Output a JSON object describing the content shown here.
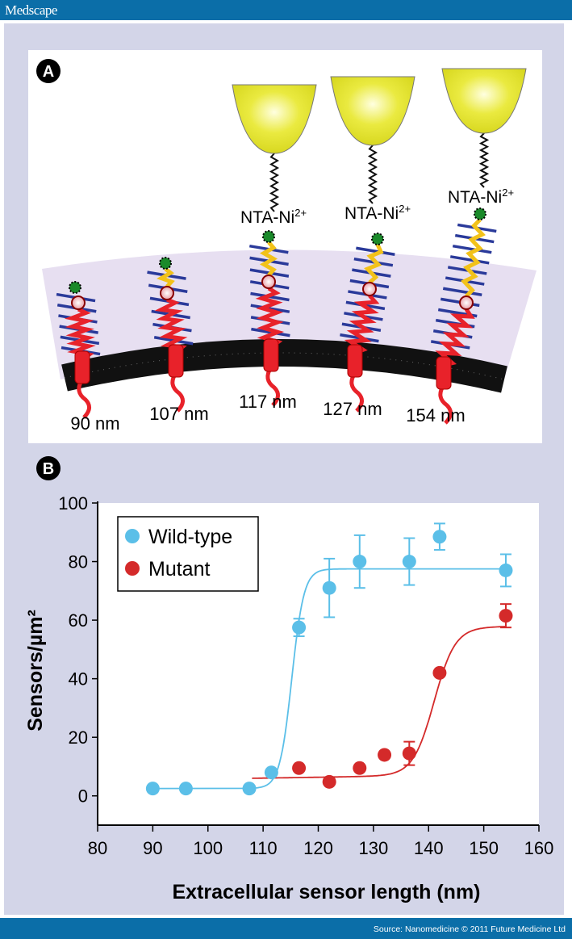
{
  "header": {
    "brand": "Medscape"
  },
  "footer": {
    "source": "Source: Nanomedicine © 2011 Future Medicine Ltd"
  },
  "panel_a": {
    "letter": "A",
    "sensor_labels": [
      "90 nm",
      "107 nm",
      "117 nm",
      "127 nm",
      "154 nm"
    ],
    "nta_label": "NTA-Ni",
    "nta_superscript": "2+",
    "colors": {
      "bead": "#e6e62a",
      "membrane": "#111111",
      "protein": "#e8222a",
      "linker": "#f2c21a",
      "repeats": "#2a3a9a",
      "glycocalyx": "#e4dcef"
    }
  },
  "panel_b": {
    "letter": "B"
  },
  "chart_data": {
    "type": "scatter",
    "xlabel": "Extracellular sensor length (nm)",
    "ylabel": "Sensors/µm²",
    "xlim": [
      80,
      160
    ],
    "ylim": [
      -10,
      100
    ],
    "xticks": [
      80,
      90,
      100,
      110,
      120,
      130,
      140,
      150,
      160
    ],
    "yticks": [
      0,
      20,
      40,
      60,
      80,
      100
    ],
    "grid": false,
    "legend": "top-left",
    "series": [
      {
        "name": "Wild-type",
        "color": "#5bbfe8",
        "x": [
          90,
          96,
          107.5,
          111.5,
          116.5,
          122,
          127.5,
          136.5,
          142,
          154
        ],
        "y": [
          2.5,
          2.5,
          2.5,
          8,
          57.5,
          71,
          80,
          80,
          88.5,
          77
        ],
        "err": [
          0,
          0,
          0,
          0,
          3,
          10,
          9,
          8,
          4.5,
          5.5
        ],
        "fit": "sigmoid"
      },
      {
        "name": "Mutant",
        "color": "#d42a2a",
        "x": [
          116.5,
          122,
          127.5,
          132,
          136.5,
          142,
          154
        ],
        "y": [
          9.5,
          4.8,
          9.5,
          14,
          14.5,
          42,
          61.5
        ],
        "err": [
          0,
          0,
          0,
          0,
          4,
          0,
          4
        ],
        "fit": "sigmoid"
      }
    ]
  }
}
